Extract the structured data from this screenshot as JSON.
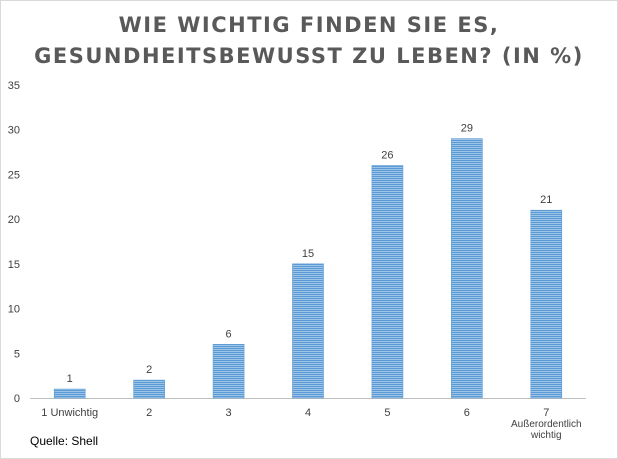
{
  "chart_data": {
    "type": "bar",
    "title_lines": [
      "WIE WICHTIG FINDEN SIE ES,",
      "GESUNDHEITSBEWUSST ZU LEBEN? (IN %)"
    ],
    "categories": [
      [
        "1 Unwichtig"
      ],
      [
        "2"
      ],
      [
        "3"
      ],
      [
        "4"
      ],
      [
        "5"
      ],
      [
        "6"
      ],
      [
        "7",
        "Außerordentlich",
        "wichtig"
      ]
    ],
    "values": [
      1,
      2,
      6,
      15,
      26,
      29,
      21
    ],
    "y_ticks": [
      0,
      5,
      10,
      15,
      20,
      25,
      30,
      35
    ],
    "ylim": [
      0,
      35
    ],
    "grid": false,
    "legend": "none",
    "colors": {
      "bar": "#5b9bd5",
      "bar_stripe": "#9dc3e6",
      "axis": "#bfbfbf",
      "text": "#404040",
      "title": "#595959"
    }
  },
  "source_label": "Quelle: Shell"
}
